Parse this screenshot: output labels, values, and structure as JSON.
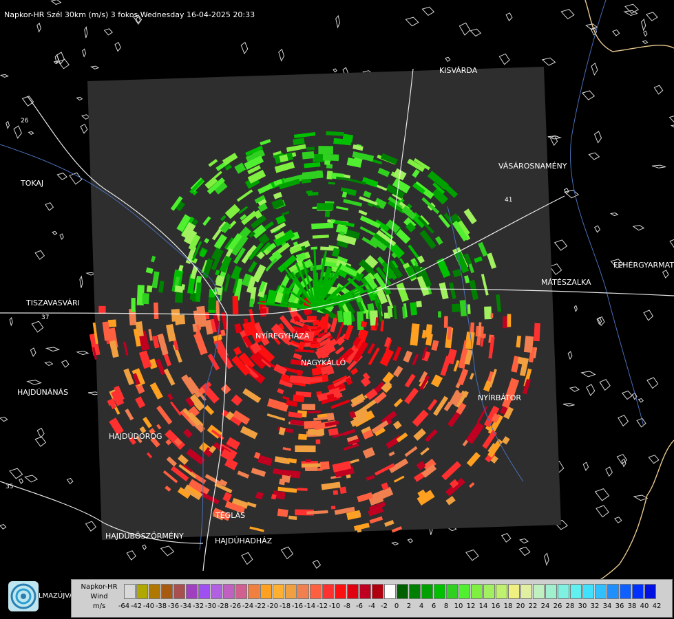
{
  "title": "Napkor-HR Szél 30km (m/s) 3 fokos Wednesday 16-04-2025 20:33",
  "cities": [
    {
      "name": "KISVÁRDA"
    },
    {
      "name": "TOKAJ"
    },
    {
      "name": "VÁSÁROSNAMÉNY"
    },
    {
      "name": "FEHÉRGYARMAT"
    },
    {
      "name": "MÁTÉSZALKA"
    },
    {
      "name": "TISZAVASVÁRI"
    },
    {
      "name": "NYÍREGYHÁZA"
    },
    {
      "name": "NAGYKÁLLÓ"
    },
    {
      "name": "HAJDÚNÁNÁS"
    },
    {
      "name": "NYÍRBÁTOR"
    },
    {
      "name": "HAJDÚDOROG"
    },
    {
      "name": "TÉGLÁS"
    },
    {
      "name": "HAJDÚBÖSZÖRMÉNY"
    },
    {
      "name": "HAJDÚHADHÁZ"
    }
  ],
  "road_numbers": [
    "26",
    "41",
    "35",
    "37"
  ],
  "legend": {
    "line1": "Napkor-HR",
    "line2": "Wind",
    "line3": "m/s",
    "ticks": [
      "-64",
      "-42",
      "-40",
      "-38",
      "-36",
      "-34",
      "-32",
      "-30",
      "-28",
      "-26",
      "-24",
      "-22",
      "-20",
      "-18",
      "-16",
      "-14",
      "-12",
      "-10",
      "-8",
      "-6",
      "-4",
      "-2",
      "0",
      "2",
      "4",
      "6",
      "8",
      "10",
      "12",
      "14",
      "16",
      "18",
      "20",
      "22",
      "24",
      "26",
      "28",
      "30",
      "32",
      "34",
      "36",
      "38",
      "40",
      "42"
    ],
    "colors": [
      "#d9d9d9",
      "#b0a800",
      "#b07800",
      "#a85a10",
      "#a85050",
      "#a040c0",
      "#a050f0",
      "#b060e0",
      "#c060c0",
      "#d06090",
      "#f08040",
      "#ffa020",
      "#ffb030",
      "#f0a040",
      "#f08050",
      "#ff6040",
      "#ff3030",
      "#ff1010",
      "#e00010",
      "#c00020",
      "#b00010",
      "#ffffff",
      "#006000",
      "#008000",
      "#00a000",
      "#00c000",
      "#30d020",
      "#50f030",
      "#80f040",
      "#a0f060",
      "#c0f070",
      "#f0f080",
      "#e0f0a0",
      "#c0f0c0",
      "#a0f0d0",
      "#80f0e0",
      "#60f0f0",
      "#40e0ff",
      "#30c0ff",
      "#2090ff",
      "#1060ff",
      "#0030ff",
      "#0010e0"
    ]
  },
  "logo_text": "LMAZÚJVÁR"
}
